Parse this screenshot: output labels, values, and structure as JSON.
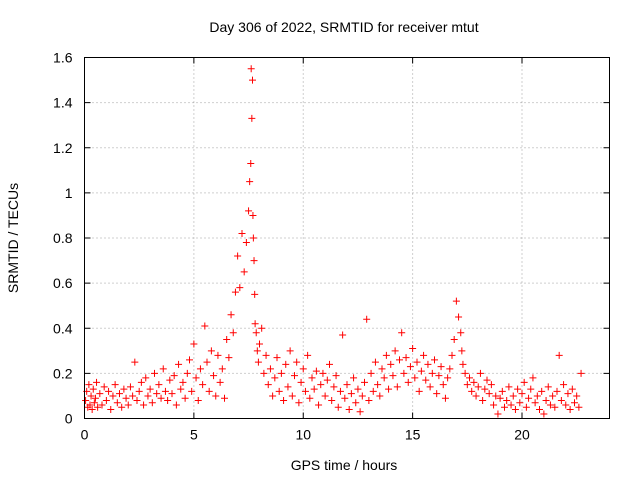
{
  "chart_data": {
    "type": "scatter",
    "title": "Day 306 of 2022, SRMTID for receiver mtut",
    "xlabel": "GPS time / hours",
    "ylabel": "SRMTID / TECUs",
    "xlim": [
      0,
      24
    ],
    "ylim": [
      0,
      1.6
    ],
    "xticks": [
      0,
      5,
      10,
      15,
      20
    ],
    "yticks": [
      0,
      0.2,
      0.4,
      0.6,
      0.8,
      1,
      1.2,
      1.4,
      1.6
    ],
    "xtick_labels": [
      "0",
      "5",
      "10",
      "15",
      "20"
    ],
    "ytick_labels": [
      "0",
      "0.2",
      "0.4",
      "0.6",
      "0.8",
      "1",
      "1.2",
      "1.4",
      "1.6"
    ],
    "grid": true,
    "marker": "+",
    "color": "#ff0000",
    "series": [
      {
        "name": "mtut",
        "x": [
          0.05,
          0.1,
          0.15,
          0.2,
          0.25,
          0.3,
          0.35,
          0.4,
          0.45,
          0.5,
          0.55,
          0.6,
          0.7,
          0.8,
          0.9,
          1.0,
          1.1,
          1.2,
          1.3,
          1.4,
          1.5,
          1.6,
          1.7,
          1.8,
          1.9,
          2.0,
          2.1,
          2.2,
          2.3,
          2.4,
          2.5,
          2.6,
          2.7,
          2.8,
          2.9,
          3.0,
          3.1,
          3.2,
          3.3,
          3.4,
          3.5,
          3.6,
          3.7,
          3.8,
          3.9,
          4.0,
          4.1,
          4.2,
          4.3,
          4.4,
          4.5,
          4.6,
          4.7,
          4.8,
          4.9,
          5.0,
          5.1,
          5.2,
          5.3,
          5.4,
          5.5,
          5.6,
          5.7,
          5.8,
          5.9,
          6.0,
          6.1,
          6.2,
          6.3,
          6.4,
          6.5,
          6.6,
          6.7,
          6.8,
          6.9,
          7.0,
          7.1,
          7.2,
          7.3,
          7.4,
          7.5,
          7.55,
          7.6,
          7.62,
          7.65,
          7.68,
          7.7,
          7.72,
          7.75,
          7.78,
          7.8,
          7.85,
          7.9,
          7.95,
          8.0,
          8.1,
          8.2,
          8.3,
          8.4,
          8.5,
          8.6,
          8.7,
          8.8,
          8.9,
          9.0,
          9.1,
          9.2,
          9.3,
          9.4,
          9.5,
          9.6,
          9.7,
          9.8,
          9.9,
          10.0,
          10.1,
          10.2,
          10.3,
          10.4,
          10.5,
          10.6,
          10.7,
          10.8,
          10.9,
          11.0,
          11.1,
          11.2,
          11.3,
          11.4,
          11.5,
          11.6,
          11.7,
          11.8,
          11.9,
          12.0,
          12.1,
          12.2,
          12.3,
          12.4,
          12.5,
          12.6,
          12.7,
          12.8,
          12.9,
          13.0,
          13.1,
          13.2,
          13.3,
          13.4,
          13.5,
          13.6,
          13.7,
          13.8,
          13.9,
          14.0,
          14.1,
          14.2,
          14.3,
          14.4,
          14.5,
          14.6,
          14.7,
          14.8,
          14.9,
          15.0,
          15.1,
          15.2,
          15.3,
          15.4,
          15.5,
          15.6,
          15.7,
          15.8,
          15.9,
          16.0,
          16.1,
          16.2,
          16.3,
          16.4,
          16.5,
          16.6,
          16.7,
          16.8,
          16.9,
          17.0,
          17.1,
          17.2,
          17.25,
          17.3,
          17.4,
          17.5,
          17.6,
          17.7,
          17.8,
          17.9,
          18.0,
          18.1,
          18.2,
          18.3,
          18.4,
          18.5,
          18.6,
          18.7,
          18.8,
          18.9,
          19.0,
          19.1,
          19.2,
          19.3,
          19.4,
          19.5,
          19.6,
          19.7,
          19.8,
          19.9,
          20.0,
          20.1,
          20.2,
          20.3,
          20.4,
          20.5,
          20.6,
          20.7,
          20.8,
          20.9,
          21.0,
          21.1,
          21.2,
          21.3,
          21.4,
          21.5,
          21.6,
          21.7,
          21.8,
          21.9,
          22.0,
          22.1,
          22.2,
          22.3,
          22.4,
          22.5,
          22.6,
          22.7
        ],
        "y": [
          0.08,
          0.12,
          0.05,
          0.15,
          0.06,
          0.1,
          0.04,
          0.13,
          0.07,
          0.09,
          0.16,
          0.05,
          0.11,
          0.06,
          0.14,
          0.08,
          0.12,
          0.04,
          0.1,
          0.15,
          0.07,
          0.11,
          0.05,
          0.13,
          0.09,
          0.06,
          0.14,
          0.1,
          0.25,
          0.08,
          0.12,
          0.16,
          0.06,
          0.18,
          0.1,
          0.13,
          0.07,
          0.2,
          0.11,
          0.15,
          0.09,
          0.22,
          0.12,
          0.08,
          0.17,
          0.11,
          0.19,
          0.06,
          0.24,
          0.13,
          0.16,
          0.09,
          0.2,
          0.26,
          0.12,
          0.33,
          0.18,
          0.08,
          0.22,
          0.15,
          0.41,
          0.25,
          0.12,
          0.3,
          0.19,
          0.1,
          0.28,
          0.16,
          0.22,
          0.09,
          0.35,
          0.27,
          0.46,
          0.38,
          0.56,
          0.72,
          0.58,
          0.82,
          0.65,
          0.78,
          0.92,
          1.05,
          1.13,
          1.55,
          1.33,
          1.5,
          0.9,
          0.8,
          0.7,
          0.55,
          0.42,
          0.38,
          0.3,
          0.25,
          0.33,
          0.4,
          0.2,
          0.28,
          0.15,
          0.22,
          0.1,
          0.18,
          0.27,
          0.12,
          0.2,
          0.08,
          0.24,
          0.14,
          0.3,
          0.1,
          0.19,
          0.25,
          0.07,
          0.16,
          0.22,
          0.12,
          0.28,
          0.09,
          0.18,
          0.13,
          0.21,
          0.06,
          0.15,
          0.2,
          0.1,
          0.17,
          0.24,
          0.08,
          0.14,
          0.19,
          0.05,
          0.12,
          0.37,
          0.09,
          0.15,
          0.04,
          0.11,
          0.18,
          0.07,
          0.13,
          0.03,
          0.1,
          0.16,
          0.44,
          0.08,
          0.2,
          0.12,
          0.25,
          0.15,
          0.1,
          0.22,
          0.18,
          0.28,
          0.13,
          0.24,
          0.19,
          0.3,
          0.14,
          0.26,
          0.38,
          0.2,
          0.27,
          0.16,
          0.23,
          0.31,
          0.18,
          0.25,
          0.12,
          0.21,
          0.28,
          0.17,
          0.24,
          0.14,
          0.2,
          0.26,
          0.11,
          0.19,
          0.23,
          0.15,
          0.09,
          0.18,
          0.22,
          0.28,
          0.35,
          0.52,
          0.45,
          0.38,
          0.3,
          0.24,
          0.2,
          0.15,
          0.18,
          0.12,
          0.16,
          0.1,
          0.14,
          0.2,
          0.08,
          0.13,
          0.17,
          0.11,
          0.15,
          0.06,
          0.1,
          0.02,
          0.09,
          0.12,
          0.05,
          0.08,
          0.14,
          0.06,
          0.1,
          0.04,
          0.13,
          0.07,
          0.11,
          0.16,
          0.05,
          0.09,
          0.13,
          0.18,
          0.07,
          0.1,
          0.04,
          0.12,
          0.02,
          0.08,
          0.14,
          0.06,
          0.1,
          0.05,
          0.12,
          0.28,
          0.08,
          0.15,
          0.06,
          0.11,
          0.04,
          0.13,
          0.07,
          0.1,
          0.05,
          0.2
        ]
      }
    ]
  }
}
